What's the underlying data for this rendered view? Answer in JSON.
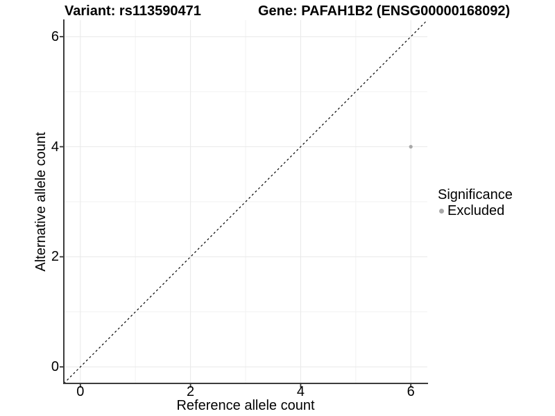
{
  "chart_data": {
    "type": "scatter",
    "title_left": "Variant: rs113590471",
    "title_right": "Gene: PAFAH1B2 (ENSG00000168092)",
    "xlabel": "Reference allele count",
    "ylabel": "Alternative allele count",
    "xlim": [
      -0.3,
      6.3
    ],
    "ylim": [
      -0.3,
      6.3
    ],
    "xticks": [
      0,
      2,
      4,
      6
    ],
    "yticks": [
      0,
      2,
      4,
      6
    ],
    "x_minor_ticks": [
      1,
      3,
      5
    ],
    "y_minor_ticks": [
      1,
      3,
      5
    ],
    "grid": true,
    "background": "#ffffff",
    "reference_line": {
      "type": "identity",
      "slope": 1,
      "intercept": 0,
      "style": "dashed",
      "color": "#000000"
    },
    "series": [
      {
        "name": "Excluded",
        "color": "#a8a8a8",
        "points": [
          {
            "x": 6,
            "y": 4
          }
        ]
      }
    ],
    "legend": {
      "title": "Significance",
      "position": "right",
      "entries": [
        {
          "label": "Excluded",
          "color": "#a8a8a8"
        }
      ]
    },
    "colors": {
      "axis_line": "#3c3c3c",
      "tick_mark": "#333333",
      "grid_major": "#e8e8e8",
      "grid_minor": "#f2f2f2",
      "point": "#a8a8a8",
      "text": "#000000"
    }
  }
}
